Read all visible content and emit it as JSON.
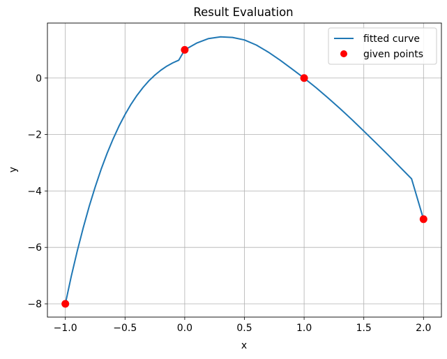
{
  "chart_data": {
    "type": "line",
    "title": "Result Evaluation",
    "xlabel": "x",
    "ylabel": "y",
    "xlim": [
      -1.15,
      2.15
    ],
    "ylim": [
      -8.47,
      1.95
    ],
    "grid": true,
    "legend_position": "top-right",
    "x_ticks": [
      -1.0,
      -0.5,
      0.0,
      0.5,
      1.0,
      1.5,
      2.0
    ],
    "x_tick_labels": [
      "−1.0",
      "−0.5",
      "0.0",
      "0.5",
      "1.0",
      "1.5",
      "2.0"
    ],
    "y_ticks": [
      -8,
      -6,
      -4,
      -2,
      0
    ],
    "y_tick_labels": [
      "−8",
      "−6",
      "−4",
      "−2",
      "0"
    ],
    "series": [
      {
        "name": "fitted curve",
        "kind": "line",
        "color": "#1f77b4",
        "points": [
          [
            -1.0,
            -8.0
          ],
          [
            -0.95,
            -7.025
          ],
          [
            -0.9,
            -6.127
          ],
          [
            -0.85,
            -5.303
          ],
          [
            -0.8,
            -4.548
          ],
          [
            -0.75,
            -3.859
          ],
          [
            -0.7,
            -3.233
          ],
          [
            -0.65,
            -2.666
          ],
          [
            -0.6,
            -2.156
          ],
          [
            -0.55,
            -1.699
          ],
          [
            -0.5,
            -1.292
          ],
          [
            -0.45,
            -0.931
          ],
          [
            -0.4,
            -0.614
          ],
          [
            -0.35,
            -0.337
          ],
          [
            -0.3,
            -0.098
          ],
          [
            -0.25,
            0.107
          ],
          [
            -0.2,
            0.279
          ],
          [
            -0.15,
            0.422
          ],
          [
            -0.1,
            0.539
          ],
          [
            -0.05,
            0.634
          ],
          [
            0.0,
            1.0
          ],
          [
            0.1,
            1.24
          ],
          [
            0.2,
            1.4
          ],
          [
            0.3,
            1.46
          ],
          [
            0.4,
            1.44
          ],
          [
            0.5,
            1.35
          ],
          [
            0.6,
            1.17
          ],
          [
            0.7,
            0.92
          ],
          [
            0.8,
            0.63
          ],
          [
            0.9,
            0.32
          ],
          [
            1.0,
            0.0
          ],
          [
            1.1,
            -0.34
          ],
          [
            1.2,
            -0.7
          ],
          [
            1.3,
            -1.08
          ],
          [
            1.4,
            -1.47
          ],
          [
            1.5,
            -1.88
          ],
          [
            1.6,
            -2.29
          ],
          [
            1.7,
            -2.71
          ],
          [
            1.8,
            -3.14
          ],
          [
            1.9,
            -3.57
          ],
          [
            2.0,
            -5.0
          ]
        ]
      },
      {
        "name": "given points",
        "kind": "scatter",
        "color": "#ff0000",
        "points": [
          [
            -1.0,
            -8.0
          ],
          [
            0.0,
            1.0
          ],
          [
            1.0,
            0.0
          ],
          [
            2.0,
            -5.0
          ]
        ]
      }
    ]
  }
}
